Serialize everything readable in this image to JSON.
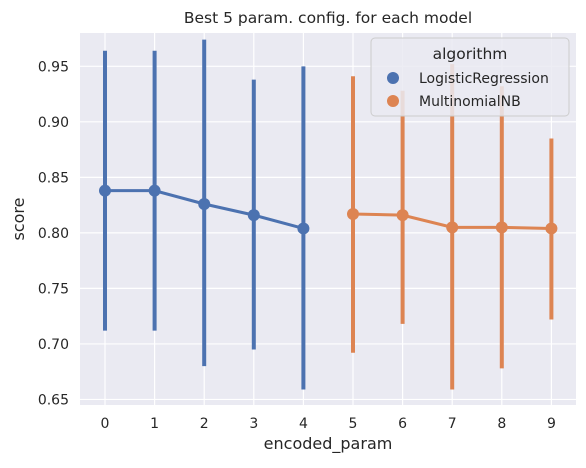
{
  "chart_data": {
    "type": "line",
    "title": "Best 5 param. config. for each model",
    "xlabel": "encoded_param",
    "ylabel": "score",
    "x": [
      0,
      1,
      2,
      3,
      4,
      5,
      6,
      7,
      8,
      9
    ],
    "xticks": [
      "0",
      "1",
      "2",
      "3",
      "4",
      "5",
      "6",
      "7",
      "8",
      "9"
    ],
    "ylim": [
      0.645,
      0.98
    ],
    "yticks": [
      "0.65",
      "0.70",
      "0.75",
      "0.80",
      "0.85",
      "0.90",
      "0.95"
    ],
    "grid": true,
    "legend": {
      "title": "algorithm",
      "placement": "top-right"
    },
    "series": [
      {
        "name": "LogisticRegression",
        "color": "#4c72b0",
        "x": [
          0,
          1,
          2,
          3,
          4
        ],
        "values": [
          0.838,
          0.838,
          0.826,
          0.816,
          0.804
        ],
        "ci_low": [
          0.712,
          0.712,
          0.68,
          0.695,
          0.659
        ],
        "ci_high": [
          0.964,
          0.964,
          0.974,
          0.938,
          0.95
        ]
      },
      {
        "name": "MultinomialNB",
        "color": "#dd8452",
        "x": [
          5,
          6,
          7,
          8,
          9
        ],
        "values": [
          0.817,
          0.816,
          0.805,
          0.805,
          0.804
        ],
        "ci_low": [
          0.692,
          0.718,
          0.659,
          0.678,
          0.722
        ],
        "ci_high": [
          0.941,
          0.928,
          0.952,
          0.932,
          0.885
        ]
      }
    ]
  }
}
